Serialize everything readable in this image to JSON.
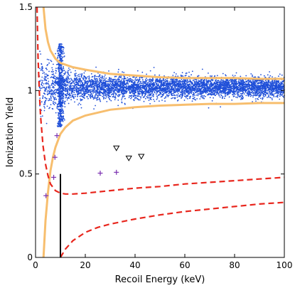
{
  "chart_data": {
    "type": "scatter",
    "xlabel": "Recoil Energy (keV)",
    "ylabel": "Ionization Yield",
    "xlim": [
      0,
      100
    ],
    "ylim": [
      0,
      1.5
    ],
    "x_ticks": [
      0,
      20,
      40,
      60,
      80,
      100
    ],
    "y_ticks": [
      0,
      0.5,
      1,
      1.5
    ],
    "y_tick_labels": [
      "0",
      "0.5",
      "1",
      "1.5"
    ],
    "grid": false,
    "series": [
      {
        "kind": "scatter_cloud",
        "description_of_band": "dense electron-recoil band",
        "color": "#1f4fd8",
        "approx_center_y": 1.02,
        "approx_point_count": 5000
      },
      {
        "kind": "points",
        "marker": "plus",
        "color": "#7a2fb0",
        "points": [
          [
            4.2,
            0.37
          ],
          [
            7.3,
            0.48
          ],
          [
            7.8,
            0.6
          ],
          [
            8.6,
            0.73
          ],
          [
            26,
            0.505
          ],
          [
            32.5,
            0.51
          ]
        ]
      },
      {
        "kind": "points",
        "marker": "triangle-down",
        "color": "#000000",
        "points": [
          [
            32.5,
            0.655
          ],
          [
            37.5,
            0.595
          ],
          [
            42.5,
            0.605
          ]
        ]
      },
      {
        "kind": "curve",
        "style": "solid",
        "color": "#f7be6e",
        "points": [
          [
            3.2,
            1.5
          ],
          [
            4,
            1.37
          ],
          [
            5,
            1.29
          ],
          [
            6,
            1.24
          ],
          [
            8,
            1.19
          ],
          [
            10,
            1.165
          ],
          [
            15,
            1.14
          ],
          [
            20,
            1.125
          ],
          [
            30,
            1.1
          ],
          [
            40,
            1.09
          ],
          [
            50,
            1.08
          ],
          [
            60,
            1.075
          ],
          [
            70,
            1.075
          ],
          [
            80,
            1.075
          ],
          [
            90,
            1.07
          ],
          [
            100,
            1.07
          ]
        ]
      },
      {
        "kind": "curve",
        "style": "solid",
        "color": "#f7be6e",
        "points": [
          [
            3.2,
            0
          ],
          [
            4,
            0.22
          ],
          [
            5,
            0.39
          ],
          [
            6,
            0.52
          ],
          [
            7,
            0.6
          ],
          [
            8,
            0.66
          ],
          [
            10,
            0.74
          ],
          [
            12,
            0.78
          ],
          [
            15,
            0.82
          ],
          [
            20,
            0.85
          ],
          [
            30,
            0.885
          ],
          [
            40,
            0.9
          ],
          [
            50,
            0.91
          ],
          [
            60,
            0.915
          ],
          [
            70,
            0.92
          ],
          [
            80,
            0.92
          ],
          [
            90,
            0.925
          ],
          [
            100,
            0.925
          ]
        ]
      },
      {
        "kind": "curve",
        "style": "dashed",
        "color": "#e8261d",
        "points": [
          [
            0.6,
            1.5
          ],
          [
            1,
            1.2
          ],
          [
            1.5,
            1.0
          ],
          [
            2,
            0.85
          ],
          [
            3,
            0.67
          ],
          [
            4,
            0.56
          ],
          [
            5,
            0.49
          ],
          [
            6,
            0.44
          ],
          [
            8,
            0.4
          ],
          [
            10,
            0.385
          ],
          [
            12,
            0.38
          ],
          [
            15,
            0.38
          ],
          [
            20,
            0.385
          ],
          [
            30,
            0.4
          ],
          [
            40,
            0.415
          ],
          [
            50,
            0.425
          ],
          [
            60,
            0.44
          ],
          [
            70,
            0.45
          ],
          [
            80,
            0.46
          ],
          [
            90,
            0.47
          ],
          [
            100,
            0.48
          ]
        ]
      },
      {
        "kind": "curve",
        "style": "dashed",
        "color": "#e8261d",
        "points": [
          [
            10,
            0
          ],
          [
            12,
            0.05
          ],
          [
            15,
            0.1
          ],
          [
            20,
            0.15
          ],
          [
            25,
            0.18
          ],
          [
            30,
            0.2
          ],
          [
            40,
            0.23
          ],
          [
            50,
            0.255
          ],
          [
            60,
            0.275
          ],
          [
            70,
            0.29
          ],
          [
            80,
            0.305
          ],
          [
            90,
            0.32
          ],
          [
            100,
            0.33
          ]
        ]
      },
      {
        "kind": "vline",
        "color": "#000000",
        "x": 10,
        "y_from": 0,
        "y_to": 0.5
      }
    ]
  }
}
